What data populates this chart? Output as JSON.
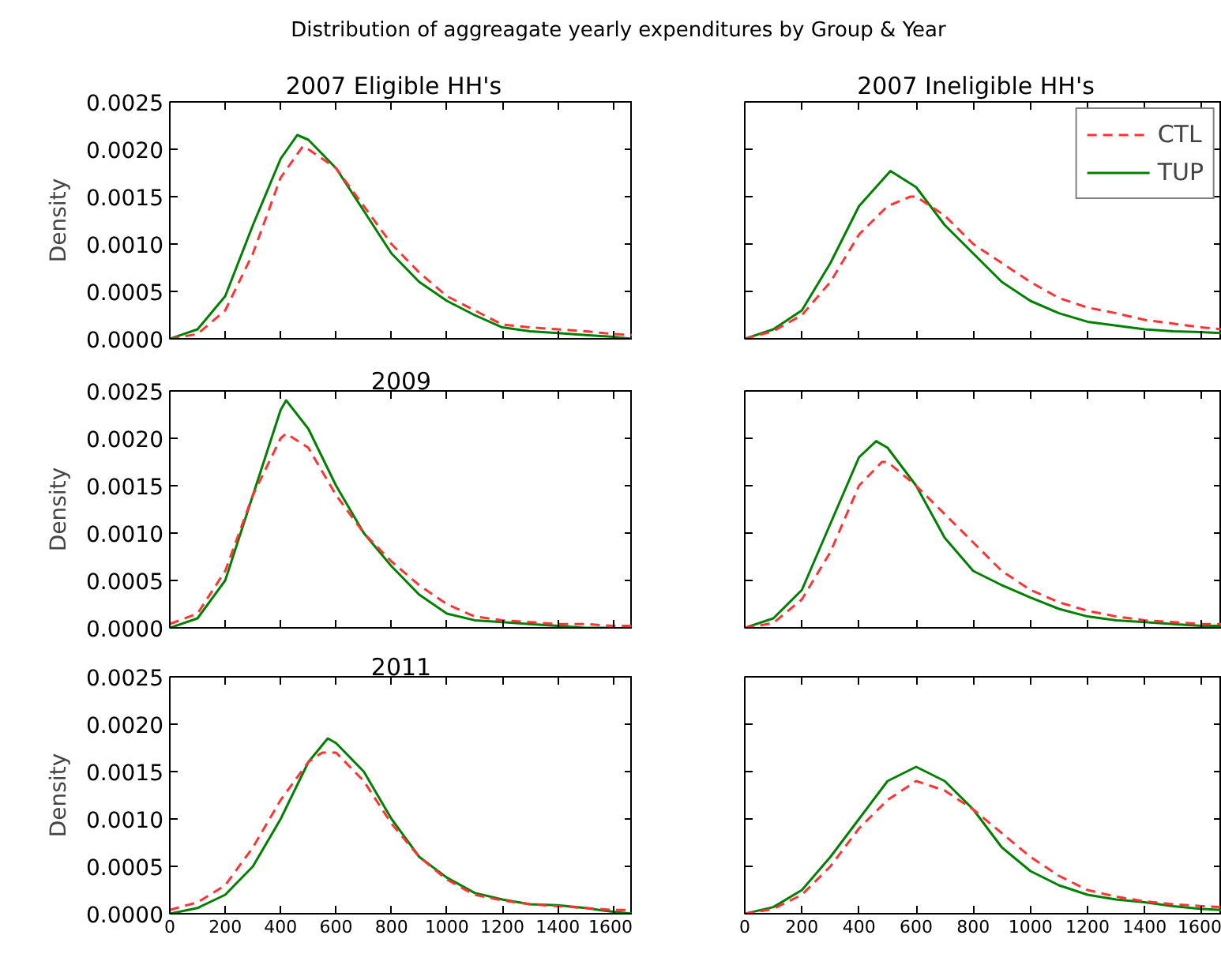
{
  "chart_data": [
    {
      "type": "other",
      "title": "Distribution of aggreagate yearly expenditures by Group & Year"
    },
    {
      "type": "line",
      "title": "2007   Eligible HH's",
      "ylabel": "Density",
      "xlim": [
        0,
        1670
      ],
      "ylim": [
        0,
        0.0025
      ],
      "xticks": [
        {
          "value": 0,
          "label": null
        },
        {
          "value": 200,
          "label": null
        },
        {
          "value": 400,
          "label": null
        },
        {
          "value": 600,
          "label": null
        },
        {
          "value": 800,
          "label": null
        },
        {
          "value": 1000,
          "label": null
        },
        {
          "value": 1200,
          "label": null
        },
        {
          "value": 1400,
          "label": null
        },
        {
          "value": 1600,
          "label": null
        }
      ],
      "yticks": [
        {
          "value": 0,
          "label": "0.0000"
        },
        {
          "value": 0.0005,
          "label": "0.0005"
        },
        {
          "value": 0.001,
          "label": "0.0010"
        },
        {
          "value": 0.0015,
          "label": "0.0015"
        },
        {
          "value": 0.002,
          "label": "0.0020"
        },
        {
          "value": 0.0025,
          "label": "0.0025"
        }
      ],
      "tick_labels": "y",
      "grid": false,
      "legend": false,
      "series": [
        {
          "color": "#ff3333",
          "line_style": "dashed",
          "x": [
            0,
            100,
            200,
            300,
            400,
            480,
            500,
            600,
            700,
            800,
            900,
            1000,
            1100,
            1200,
            1300,
            1400,
            1500,
            1600,
            1670
          ],
          "values": [
            0,
            5e-05,
            0.0003,
            0.0009,
            0.0017,
            0.00203,
            0.002,
            0.0018,
            0.0014,
            0.001,
            0.0007,
            0.00045,
            0.0003,
            0.00015,
            0.00012,
            0.0001,
            8e-05,
            5e-05,
            4e-05
          ]
        },
        {
          "color": "#008000",
          "line_style": "solid",
          "x": [
            0,
            100,
            200,
            300,
            400,
            460,
            500,
            600,
            700,
            800,
            900,
            1000,
            1100,
            1200,
            1300,
            1400,
            1500,
            1600,
            1670
          ],
          "values": [
            0,
            0.0001,
            0.00045,
            0.0012,
            0.0019,
            0.00215,
            0.0021,
            0.0018,
            0.00135,
            0.0009,
            0.0006,
            0.0004,
            0.00025,
            0.00012,
            8e-05,
            6e-05,
            4e-05,
            2e-05,
            0
          ]
        }
      ]
    },
    {
      "type": "line",
      "title": "2007   Ineligible HH's",
      "xlim": [
        0,
        1670
      ],
      "ylim": [
        0,
        0.0025
      ],
      "xticks": [
        {
          "value": 0,
          "label": null
        },
        {
          "value": 200,
          "label": null
        },
        {
          "value": 400,
          "label": null
        },
        {
          "value": 600,
          "label": null
        },
        {
          "value": 800,
          "label": null
        },
        {
          "value": 1000,
          "label": null
        },
        {
          "value": 1200,
          "label": null
        },
        {
          "value": 1400,
          "label": null
        },
        {
          "value": 1600,
          "label": null
        }
      ],
      "yticks": [
        {
          "value": 0,
          "label": null
        },
        {
          "value": 0.0005,
          "label": null
        },
        {
          "value": 0.001,
          "label": null
        },
        {
          "value": 0.0015,
          "label": null
        },
        {
          "value": 0.002,
          "label": null
        },
        {
          "value": 0.0025,
          "label": null
        }
      ],
      "tick_labels": false,
      "grid": false,
      "legend": "top right",
      "series": [
        {
          "name": "CTL",
          "color": "#ff3333",
          "line_style": "dashed",
          "x": [
            0,
            100,
            200,
            300,
            400,
            500,
            580,
            600,
            700,
            800,
            900,
            1000,
            1100,
            1200,
            1300,
            1400,
            1500,
            1600,
            1670
          ],
          "values": [
            0,
            8e-05,
            0.00025,
            0.0006,
            0.0011,
            0.0014,
            0.0015,
            0.0015,
            0.0013,
            0.001,
            0.0008,
            0.0006,
            0.00043,
            0.00033,
            0.00027,
            0.0002,
            0.00016,
            0.00012,
            0.0001
          ]
        },
        {
          "name": "TUP",
          "color": "#008000",
          "line_style": "solid",
          "x": [
            0,
            100,
            200,
            300,
            400,
            510,
            600,
            700,
            800,
            900,
            1000,
            1100,
            1200,
            1300,
            1400,
            1500,
            1600,
            1670
          ],
          "values": [
            0,
            0.0001,
            0.0003,
            0.0008,
            0.0014,
            0.00177,
            0.0016,
            0.0012,
            0.0009,
            0.0006,
            0.0004,
            0.00027,
            0.00018,
            0.00014,
            0.0001,
            8e-05,
            7e-05,
            6e-05
          ]
        }
      ]
    },
    {
      "type": "line",
      "title": "2009",
      "ylabel": "Density",
      "xlim": [
        0,
        1670
      ],
      "ylim": [
        0,
        0.0025
      ],
      "xticks": [
        {
          "value": 0,
          "label": null
        },
        {
          "value": 200,
          "label": null
        },
        {
          "value": 400,
          "label": null
        },
        {
          "value": 600,
          "label": null
        },
        {
          "value": 800,
          "label": null
        },
        {
          "value": 1000,
          "label": null
        },
        {
          "value": 1200,
          "label": null
        },
        {
          "value": 1400,
          "label": null
        },
        {
          "value": 1600,
          "label": null
        }
      ],
      "yticks": [
        {
          "value": 0,
          "label": "0.0000"
        },
        {
          "value": 0.0005,
          "label": "0.0005"
        },
        {
          "value": 0.001,
          "label": "0.0010"
        },
        {
          "value": 0.0015,
          "label": "0.0015"
        },
        {
          "value": 0.002,
          "label": "0.0020"
        },
        {
          "value": 0.0025,
          "label": "0.0025"
        }
      ],
      "tick_labels": "y",
      "grid": false,
      "legend": false,
      "series": [
        {
          "color": "#ff3333",
          "line_style": "dashed",
          "x": [
            0,
            100,
            200,
            300,
            400,
            420,
            500,
            600,
            700,
            800,
            900,
            1000,
            1100,
            1200,
            1300,
            1400,
            1500,
            1600,
            1670
          ],
          "values": [
            4e-05,
            0.00015,
            0.0006,
            0.0014,
            0.002,
            0.00205,
            0.0019,
            0.0014,
            0.001,
            0.0007,
            0.00045,
            0.00025,
            0.00012,
            8e-05,
            6e-05,
            4e-05,
            4e-05,
            2e-05,
            2e-05
          ]
        },
        {
          "color": "#008000",
          "line_style": "solid",
          "x": [
            0,
            100,
            200,
            300,
            400,
            420,
            500,
            600,
            700,
            800,
            900,
            1000,
            1100,
            1200,
            1300,
            1400,
            1500,
            1600
          ],
          "values": [
            0,
            0.0001,
            0.0005,
            0.0014,
            0.0023,
            0.0024,
            0.0021,
            0.0015,
            0.001,
            0.00065,
            0.00035,
            0.00015,
            8e-05,
            6e-05,
            4e-05,
            2e-05,
            0,
            0
          ]
        }
      ]
    },
    {
      "type": "line",
      "xlim": [
        0,
        1670
      ],
      "ylim": [
        0,
        0.0025
      ],
      "xticks": [
        {
          "value": 0,
          "label": null
        },
        {
          "value": 200,
          "label": null
        },
        {
          "value": 400,
          "label": null
        },
        {
          "value": 600,
          "label": null
        },
        {
          "value": 800,
          "label": null
        },
        {
          "value": 1000,
          "label": null
        },
        {
          "value": 1200,
          "label": null
        },
        {
          "value": 1400,
          "label": null
        },
        {
          "value": 1600,
          "label": null
        }
      ],
      "yticks": [
        {
          "value": 0,
          "label": null
        },
        {
          "value": 0.0005,
          "label": null
        },
        {
          "value": 0.001,
          "label": null
        },
        {
          "value": 0.0015,
          "label": null
        },
        {
          "value": 0.002,
          "label": null
        },
        {
          "value": 0.0025,
          "label": null
        }
      ],
      "tick_labels": false,
      "grid": false,
      "legend": false,
      "series": [
        {
          "color": "#ff3333",
          "line_style": "dashed",
          "x": [
            0,
            100,
            200,
            300,
            400,
            480,
            500,
            600,
            700,
            800,
            900,
            1000,
            1100,
            1200,
            1300,
            1400,
            1500,
            1600,
            1670
          ],
          "values": [
            0,
            5e-05,
            0.0003,
            0.0008,
            0.0015,
            0.00175,
            0.00175,
            0.0015,
            0.0012,
            0.0009,
            0.0006,
            0.0004,
            0.00027,
            0.00018,
            0.00012,
            8e-05,
            6e-05,
            4e-05,
            4e-05
          ]
        },
        {
          "color": "#008000",
          "line_style": "solid",
          "x": [
            0,
            100,
            200,
            300,
            400,
            460,
            500,
            600,
            700,
            800,
            900,
            1000,
            1100,
            1200,
            1300,
            1400,
            1500,
            1600,
            1670
          ],
          "values": [
            0,
            0.0001,
            0.0004,
            0.0011,
            0.0018,
            0.00197,
            0.0019,
            0.0015,
            0.00095,
            0.0006,
            0.00045,
            0.00032,
            0.0002,
            0.00012,
            8e-05,
            6e-05,
            4e-05,
            2e-05,
            2e-05
          ]
        }
      ]
    },
    {
      "type": "line",
      "title": "2011",
      "ylabel": "Density",
      "xlim": [
        0,
        1670
      ],
      "ylim": [
        0,
        0.0025
      ],
      "xticks": [
        0,
        200,
        400,
        600,
        800,
        1000,
        1200,
        1400,
        1600
      ],
      "yticks": [
        {
          "value": 0,
          "label": "0.0000"
        },
        {
          "value": 0.0005,
          "label": "0.0005"
        },
        {
          "value": 0.001,
          "label": "0.0010"
        },
        {
          "value": 0.0015,
          "label": "0.0015"
        },
        {
          "value": 0.002,
          "label": "0.0020"
        },
        {
          "value": 0.0025,
          "label": "0.0025"
        }
      ],
      "grid": false,
      "legend": false,
      "series": [
        {
          "color": "#ff3333",
          "line_style": "dashed",
          "x": [
            0,
            100,
            200,
            300,
            400,
            500,
            550,
            600,
            700,
            800,
            900,
            1000,
            1100,
            1200,
            1300,
            1400,
            1500,
            1600,
            1650
          ],
          "values": [
            4e-05,
            0.00012,
            0.0003,
            0.0007,
            0.0012,
            0.0016,
            0.0017,
            0.0017,
            0.0014,
            0.00095,
            0.0006,
            0.00036,
            0.0002,
            0.00014,
            0.0001,
            8e-05,
            6e-05,
            4e-05,
            4e-05
          ]
        },
        {
          "color": "#008000",
          "line_style": "solid",
          "x": [
            0,
            100,
            200,
            300,
            400,
            500,
            570,
            600,
            700,
            800,
            900,
            1000,
            1100,
            1200,
            1300,
            1400,
            1500,
            1600,
            1670
          ],
          "values": [
            0,
            6e-05,
            0.0002,
            0.0005,
            0.001,
            0.0016,
            0.00185,
            0.0018,
            0.0015,
            0.001,
            0.0006,
            0.00038,
            0.00022,
            0.00015,
            0.0001,
            9e-05,
            6e-05,
            2e-05,
            0
          ]
        }
      ]
    },
    {
      "type": "line",
      "xlim": [
        0,
        1670
      ],
      "ylim": [
        0,
        0.0025
      ],
      "xticks": [
        0,
        200,
        400,
        600,
        800,
        1000,
        1200,
        1400,
        1600
      ],
      "yticks": [
        {
          "value": 0,
          "label": null
        },
        {
          "value": 0.0005,
          "label": null
        },
        {
          "value": 0.001,
          "label": null
        },
        {
          "value": 0.0015,
          "label": null
        },
        {
          "value": 0.002,
          "label": null
        },
        {
          "value": 0.0025,
          "label": null
        }
      ],
      "tick_labels": "x",
      "grid": false,
      "legend": false,
      "series": [
        {
          "color": "#ff3333",
          "line_style": "dashed",
          "x": [
            0,
            100,
            200,
            300,
            400,
            500,
            600,
            700,
            800,
            900,
            1000,
            1100,
            1200,
            1300,
            1400,
            1500,
            1600,
            1670
          ],
          "values": [
            0,
            5e-05,
            0.0002,
            0.0005,
            0.0009,
            0.0012,
            0.0014,
            0.0013,
            0.0011,
            0.00085,
            0.0006,
            0.0004,
            0.00025,
            0.00018,
            0.00013,
            0.0001,
            8e-05,
            7e-05
          ]
        },
        {
          "color": "#008000",
          "line_style": "solid",
          "x": [
            0,
            100,
            200,
            300,
            400,
            500,
            600,
            700,
            800,
            900,
            1000,
            1100,
            1200,
            1300,
            1400,
            1500,
            1600,
            1670
          ],
          "values": [
            0,
            7e-05,
            0.00025,
            0.0006,
            0.001,
            0.0014,
            0.00155,
            0.0014,
            0.0011,
            0.0007,
            0.00045,
            0.0003,
            0.0002,
            0.00015,
            0.00012,
            8e-05,
            5e-05,
            4e-05
          ]
        }
      ]
    }
  ]
}
